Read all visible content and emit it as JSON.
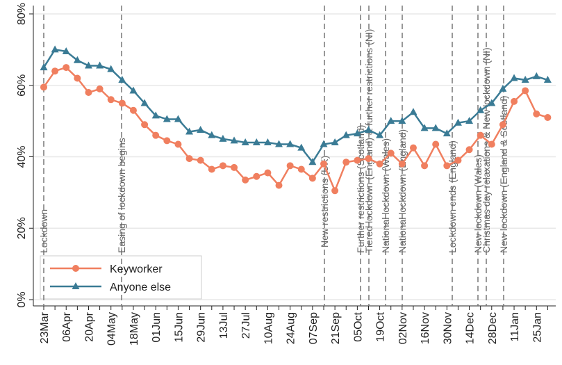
{
  "chart_data": {
    "type": "line",
    "categories": [
      "23Mar",
      null,
      "06Apr",
      null,
      "20Apr",
      null,
      "04May",
      null,
      "18May",
      null,
      "01Jun",
      null,
      "15Jun",
      null,
      "29Jun",
      null,
      "13Jul",
      null,
      "27Jul",
      null,
      "10Aug",
      null,
      "24Aug",
      null,
      "07Sep",
      null,
      "21Sep",
      null,
      "05Oct",
      null,
      "19Oct",
      null,
      "02Nov",
      null,
      "16Nov",
      null,
      "30Nov",
      null,
      "14Dec",
      null,
      "28Dec",
      null,
      "11Jan",
      null,
      "25Jan",
      null
    ],
    "series": [
      {
        "name": "Keyworker",
        "color": "#f07f5f",
        "marker": "circle",
        "values": [
          59.5,
          64,
          65,
          62,
          58,
          59,
          56,
          55,
          53,
          49,
          46,
          44.5,
          43.5,
          39.5,
          39,
          36.5,
          37.5,
          37,
          33.5,
          34.5,
          35.5,
          32,
          37.5,
          36.5,
          34,
          38,
          30.5,
          38.5,
          39,
          39.5,
          38,
          41,
          38,
          42.5,
          37.5,
          43.5,
          37.5,
          39,
          42,
          46,
          43.5,
          49,
          55.5,
          58.5,
          52,
          51
        ]
      },
      {
        "name": "Anyone else",
        "color": "#3a7b95",
        "marker": "triangle",
        "values": [
          65,
          70,
          69.5,
          67,
          65.5,
          65.5,
          64.5,
          61.5,
          58.5,
          55,
          51.5,
          50.5,
          50.5,
          47,
          47.5,
          46,
          45,
          44.5,
          44,
          44,
          44,
          43.5,
          43.5,
          42.5,
          38.5,
          43.5,
          44,
          46,
          46.5,
          47.5,
          46,
          50,
          50,
          52.5,
          48,
          48,
          46.5,
          49.5,
          50,
          53,
          55,
          59,
          62,
          61.5,
          62.5,
          61.5
        ]
      }
    ],
    "ylim": [
      0,
      80
    ],
    "yticks": [
      {
        "value": 0,
        "label": "0%"
      },
      {
        "value": 20,
        "label": "20%"
      },
      {
        "value": 40,
        "label": "40%"
      },
      {
        "value": 60,
        "label": "60%"
      },
      {
        "value": 80,
        "label": "80%"
      }
    ],
    "grid": true,
    "legend": "bottom-left",
    "events": [
      "Lockdown",
      "Easing of lockdown begins",
      "New restrictions (UK)",
      "Further restrictions (Scotland)",
      "Tiered lockdown (England) & further restrictions (NI)",
      "National lockdown (Wales)",
      "National lockdown (England)",
      "Lockdown ends (England)",
      "New lockdown (Wales)",
      "Christmas day relaxations & New lockdown (NI)",
      "New lockdown (England & Scotland)"
    ]
  }
}
